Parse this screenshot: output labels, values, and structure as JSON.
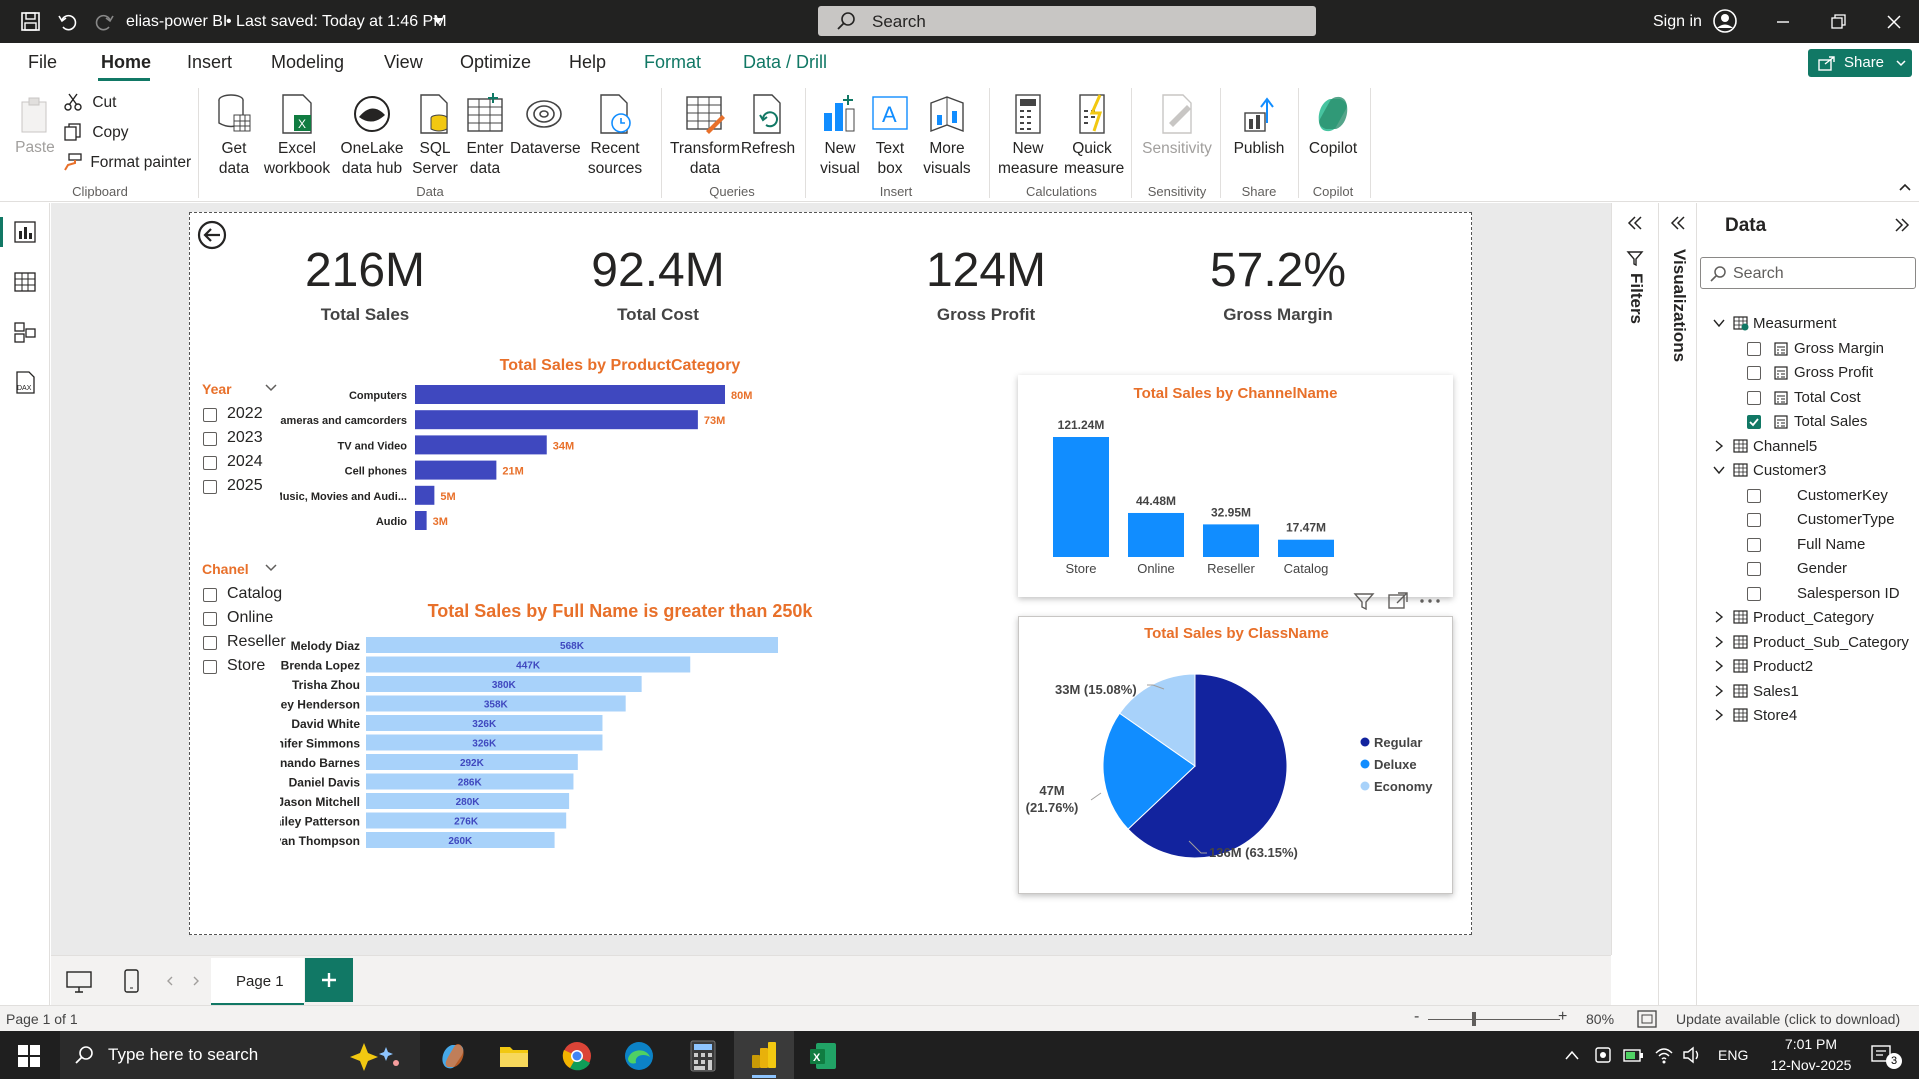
{
  "titlebar": {
    "title": "elias-power BI",
    "saved": "• Last saved: Today at 1:46 PM",
    "search": "Search",
    "signin": "Sign in"
  },
  "menu": [
    "File",
    "Home",
    "Insert",
    "Modeling",
    "View",
    "Optimize",
    "Help",
    "Format",
    "Data / Drill"
  ],
  "share": "Share",
  "ribbon": {
    "clipboard": {
      "paste": "Paste",
      "cut": "Cut",
      "copy": "Copy",
      "format_painter": "Format painter",
      "group": "Clipboard"
    },
    "data": {
      "get_data": "Get\ndata",
      "excel": "Excel\nworkbook",
      "onelake": "OneLake\ndata hub",
      "sql": "SQL\nServer",
      "enter": "Enter\ndata",
      "dataverse": "Dataverse",
      "recent": "Recent\nsources",
      "group": "Data"
    },
    "queries": {
      "transform": "Transform\ndata",
      "refresh": "Refresh",
      "group": "Queries"
    },
    "insert": {
      "new_visual": "New\nvisual",
      "text_box": "Text\nbox",
      "more_visuals": "More\nvisuals",
      "group": "Insert"
    },
    "calculations": {
      "new_measure": "New\nmeasure",
      "quick_measure": "Quick\nmeasure",
      "group": "Calculations"
    },
    "sensitivity": {
      "label": "Sensitivity",
      "group": "Sensitivity"
    },
    "share": {
      "publish": "Publish",
      "group": "Share"
    },
    "copilot": {
      "label": "Copilot",
      "group": "Copilot"
    }
  },
  "kpis": [
    {
      "value": "216M",
      "label": "Total Sales"
    },
    {
      "value": "92.4M",
      "label": "Total Cost"
    },
    {
      "value": "124M",
      "label": "Gross Profit"
    },
    {
      "value": "57.2%",
      "label": "Gross Margin"
    }
  ],
  "slicers": {
    "year": {
      "title": "Year",
      "options": [
        "2022",
        "2023",
        "2024",
        "2025"
      ]
    },
    "channel": {
      "title": "Chanel",
      "options": [
        "Catalog",
        "Online",
        "Reseller",
        "Store"
      ]
    }
  },
  "chart_data": [
    {
      "type": "bar",
      "title": "Total Sales by ProductCategory",
      "categories": [
        "Computers",
        "Cameras and camcorders",
        "TV and Video",
        "Cell phones",
        "Music, Movies and Audi...",
        "Audio"
      ],
      "values": [
        80,
        73,
        34,
        21,
        5,
        3
      ],
      "labels": [
        "80M",
        "73M",
        "34M",
        "21M",
        "5M",
        "3M"
      ],
      "color": "#3f48bf"
    },
    {
      "type": "bar",
      "title": "Total Sales by Full Name is greater than 250k",
      "categories": [
        "Melody Diaz",
        "Brenda Lopez",
        "Trisha Zhou",
        "Ashley Henderson",
        "David White",
        "Jennifer Simmons",
        "Fernando Barnes",
        "Daniel Davis",
        "Jason Mitchell",
        "Hailey Patterson",
        "Ryan Thompson"
      ],
      "values": [
        568,
        447,
        380,
        358,
        326,
        326,
        292,
        286,
        280,
        276,
        260
      ],
      "labels": [
        "568K",
        "447K",
        "380K",
        "358K",
        "326K",
        "326K",
        "292K",
        "286K",
        "280K",
        "276K",
        "260K"
      ],
      "color": "#a8d2fa"
    },
    {
      "type": "bar",
      "title": "Total Sales by ChannelName",
      "categories": [
        "Store",
        "Online",
        "Reseller",
        "Catalog"
      ],
      "values": [
        121.24,
        44.48,
        32.95,
        17.47
      ],
      "labels": [
        "121.24M",
        "44.48M",
        "32.95M",
        "17.47M"
      ],
      "color": "#118dff"
    },
    {
      "type": "pie",
      "title": "Total Sales by ClassName",
      "series": [
        {
          "name": "Regular",
          "value": 136,
          "label": "136M (63.15%)",
          "color": "#12239e"
        },
        {
          "name": "Deluxe",
          "value": 47,
          "label": "47M (21.76%)",
          "color": "#118dff"
        },
        {
          "name": "Economy",
          "value": 33,
          "label": "33M (15.08%)",
          "color": "#a8d2fa"
        }
      ]
    }
  ],
  "panes": {
    "filters": "Filters",
    "visualizations": "Visualizations",
    "data": "Data",
    "search": "Search"
  },
  "fields": [
    {
      "name": "Measurment",
      "type": "measure-table",
      "expanded": true,
      "children": [
        {
          "name": "Gross Margin",
          "checked": false
        },
        {
          "name": "Gross Profit",
          "checked": false
        },
        {
          "name": "Total Cost",
          "checked": false
        },
        {
          "name": "Total Sales",
          "checked": true
        }
      ]
    },
    {
      "name": "Channel5",
      "expanded": false
    },
    {
      "name": "Customer3",
      "expanded": true,
      "children": [
        {
          "name": "CustomerKey",
          "checked": false
        },
        {
          "name": "CustomerType",
          "checked": false
        },
        {
          "name": "Full Name",
          "checked": false
        },
        {
          "name": "Gender",
          "checked": false
        },
        {
          "name": "Salesperson ID",
          "checked": false
        }
      ]
    },
    {
      "name": "Product_Category",
      "expanded": false
    },
    {
      "name": "Product_Sub_Category",
      "expanded": false
    },
    {
      "name": "Product2",
      "expanded": false
    },
    {
      "name": "Sales1",
      "expanded": false
    },
    {
      "name": "Store4",
      "expanded": false
    }
  ],
  "pages": {
    "tab": "Page 1"
  },
  "status": {
    "page": "Page 1 of 1",
    "zoom": "80%",
    "update": "Update available (click to download)"
  },
  "taskbar": {
    "search": "Type here to search",
    "lang": "ENG",
    "time": "7:01 PM",
    "date": "12-Nov-2025",
    "badge": "3"
  }
}
